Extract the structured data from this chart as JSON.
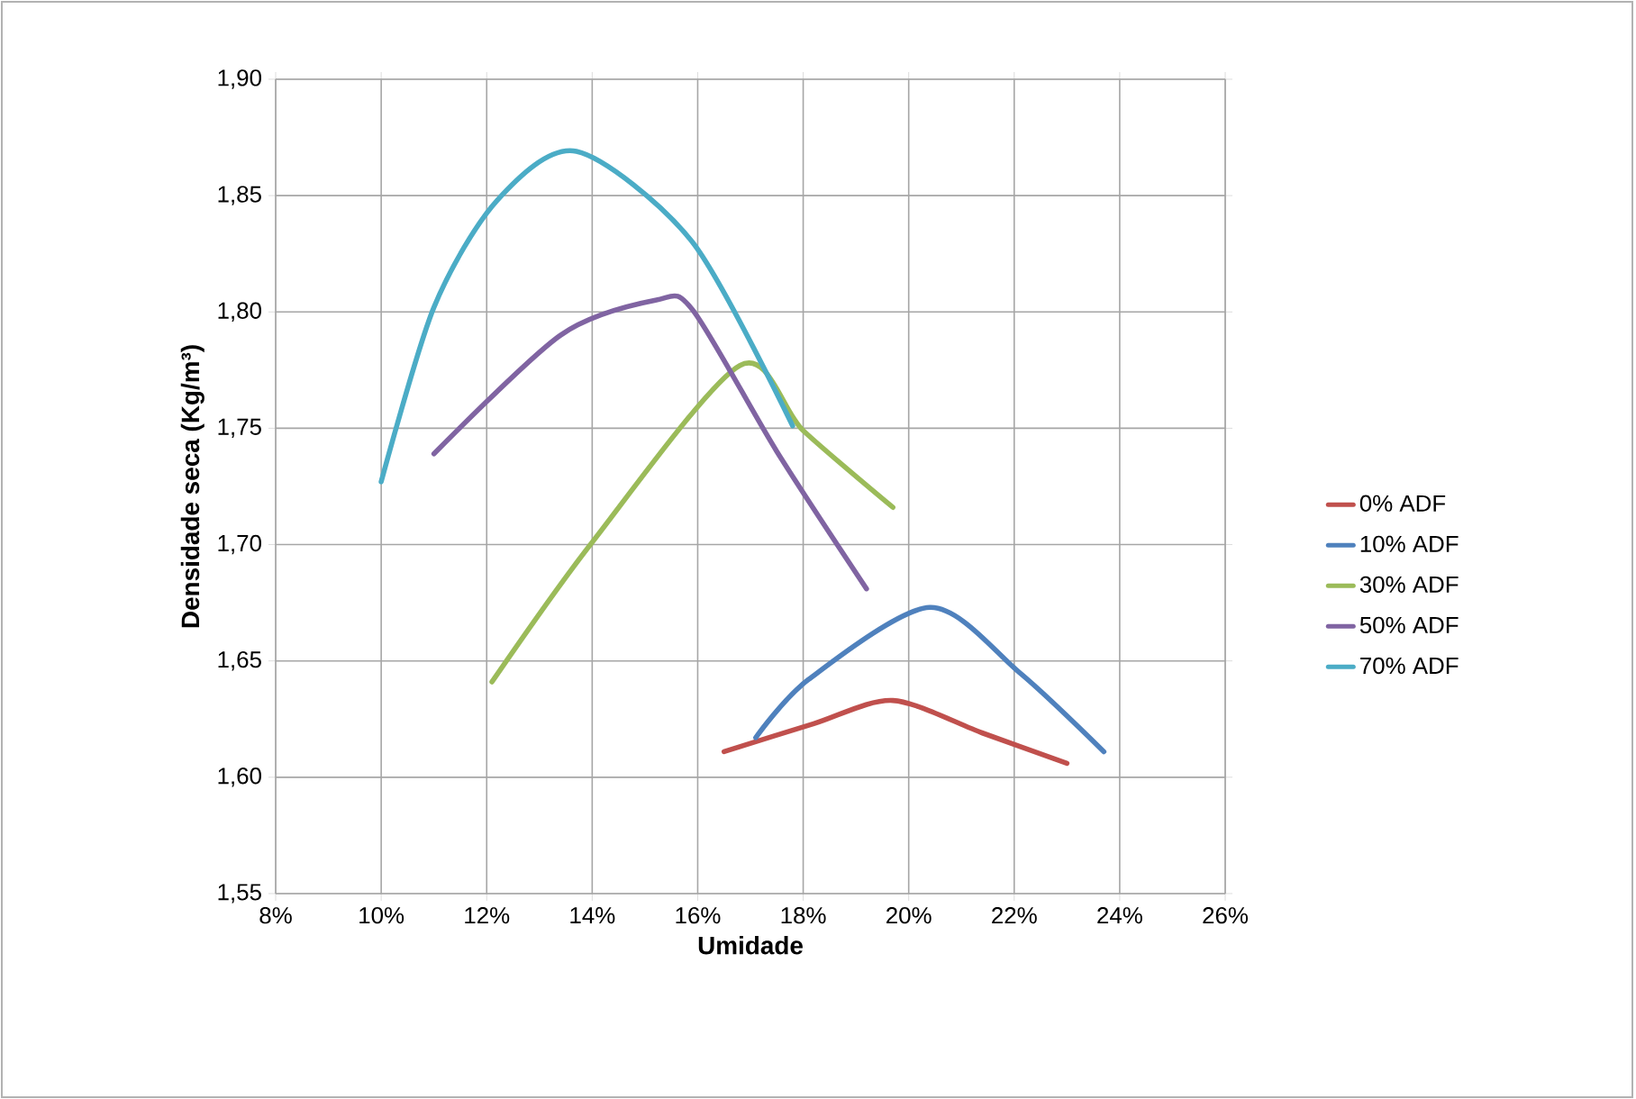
{
  "chart_data": {
    "type": "line",
    "xlabel": "Umidade",
    "ylabel": "Densidade seca (Kg/m³)",
    "series": [
      {
        "name": "0% ADF",
        "color": "#c0504d",
        "x": [
          16.5,
          18.2,
          19.7,
          21.4,
          23.0
        ],
        "values": [
          1.611,
          1.623,
          1.633,
          1.619,
          1.606
        ]
      },
      {
        "name": "10% ADF",
        "color": "#4f81bd",
        "x": [
          17.1,
          18.1,
          20.4,
          22.1,
          23.7
        ],
        "values": [
          1.617,
          1.642,
          1.673,
          1.645,
          1.611
        ]
      },
      {
        "name": "30% ADF",
        "color": "#9bbb59",
        "x": [
          12.1,
          14.0,
          16.8,
          18.0,
          19.7
        ],
        "values": [
          1.641,
          1.701,
          1.777,
          1.749,
          1.716
        ]
      },
      {
        "name": "50% ADF",
        "color": "#8064a2",
        "x": [
          11.0,
          13.4,
          15.2,
          15.9,
          17.5,
          19.2
        ],
        "values": [
          1.739,
          1.79,
          1.805,
          1.801,
          1.74,
          1.681
        ]
      },
      {
        "name": "70% ADF",
        "color": "#4bacc6",
        "x": [
          10.0,
          11.0,
          12.2,
          13.7,
          15.9,
          17.8
        ],
        "values": [
          1.727,
          1.802,
          1.848,
          1.869,
          1.83,
          1.751
        ]
      }
    ],
    "xlim": [
      8,
      26
    ],
    "xticks": [
      {
        "value": 8,
        "label": "8%"
      },
      {
        "value": 10,
        "label": "10%"
      },
      {
        "value": 12,
        "label": "12%"
      },
      {
        "value": 14,
        "label": "14%"
      },
      {
        "value": 16,
        "label": "16%"
      },
      {
        "value": 18,
        "label": "18%"
      },
      {
        "value": 20,
        "label": "20%"
      },
      {
        "value": 22,
        "label": "22%"
      },
      {
        "value": 24,
        "label": "24%"
      },
      {
        "value": 26,
        "label": "26%"
      }
    ],
    "ylim": [
      1.55,
      1.9
    ],
    "yticks": [
      {
        "value": 1.55,
        "label": "1,55"
      },
      {
        "value": 1.6,
        "label": "1,60"
      },
      {
        "value": 1.65,
        "label": "1,65"
      },
      {
        "value": 1.7,
        "label": "1,70"
      },
      {
        "value": 1.75,
        "label": "1,75"
      },
      {
        "value": 1.8,
        "label": "1,80"
      },
      {
        "value": 1.85,
        "label": "1,85"
      },
      {
        "value": 1.9,
        "label": "1,90"
      }
    ],
    "grid": true,
    "legend": "right",
    "marker": "none",
    "line_style": "solid"
  }
}
